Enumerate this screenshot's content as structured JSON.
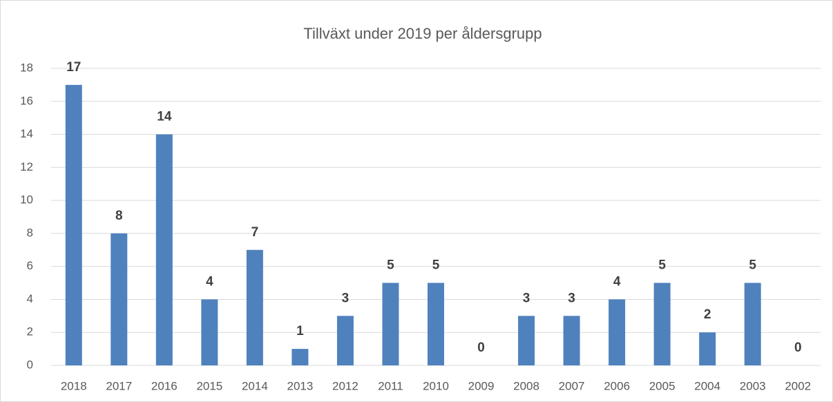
{
  "chart_data": {
    "type": "bar",
    "title": "Tillväxt under 2019 per åldersgrupp",
    "categories": [
      "2018",
      "2017",
      "2016",
      "2015",
      "2014",
      "2013",
      "2012",
      "2011",
      "2010",
      "2009",
      "2008",
      "2007",
      "2006",
      "2005",
      "2004",
      "2003",
      "2002"
    ],
    "values": [
      17,
      8,
      14,
      4,
      7,
      1,
      3,
      5,
      5,
      0,
      3,
      3,
      4,
      5,
      2,
      5,
      0
    ],
    "color": "#4f81bd",
    "ylim": [
      0,
      18
    ],
    "yticks": [
      0,
      2,
      4,
      6,
      8,
      10,
      12,
      14,
      16,
      18
    ],
    "grid": true,
    "data_labels": true
  }
}
